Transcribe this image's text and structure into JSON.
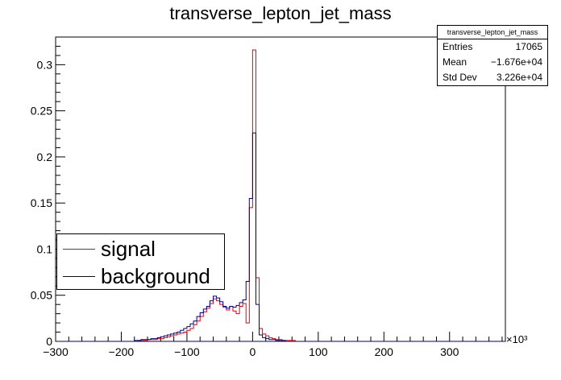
{
  "chart_data": {
    "type": "histogram",
    "title": "transverse_lepton_jet_mass",
    "xlabel": "",
    "ylabel": "",
    "x_multiplier": "×10³",
    "xlim": [
      -300,
      385
    ],
    "ylim": [
      0,
      0.33
    ],
    "x_ticks": [
      "−300",
      "−200",
      "−100",
      "0",
      "100",
      "200",
      "300"
    ],
    "y_ticks": [
      "0",
      "0.05",
      "0.1",
      "0.15",
      "0.2",
      "0.25",
      "0.3"
    ],
    "bin_width": 5,
    "stats": {
      "name": "transverse_lepton_jet_mass",
      "rows": [
        {
          "label": "Entries",
          "value": "17065"
        },
        {
          "label": "Mean",
          "value": "−1.676e+04"
        },
        {
          "label": "Std Dev",
          "value": "3.226e+04"
        }
      ]
    },
    "legend": [
      {
        "name": "signal",
        "color": "#e8000b"
      },
      {
        "name": "background",
        "color": "#00007f"
      }
    ],
    "series": [
      {
        "name": "signal",
        "color": "#e8000b",
        "bins": [
          {
            "x": -175,
            "y": 0.001
          },
          {
            "x": -170,
            "y": 0.001
          },
          {
            "x": -165,
            "y": 0.001
          },
          {
            "x": -160,
            "y": 0.002
          },
          {
            "x": -155,
            "y": 0.002
          },
          {
            "x": -150,
            "y": 0.002
          },
          {
            "x": -145,
            "y": 0.003
          },
          {
            "x": -140,
            "y": 0.003
          },
          {
            "x": -135,
            "y": 0.004
          },
          {
            "x": -130,
            "y": 0.005
          },
          {
            "x": -125,
            "y": 0.006
          },
          {
            "x": -120,
            "y": 0.007
          },
          {
            "x": -115,
            "y": 0.008
          },
          {
            "x": -110,
            "y": 0.009
          },
          {
            "x": -105,
            "y": 0.01
          },
          {
            "x": -100,
            "y": 0.012
          },
          {
            "x": -95,
            "y": 0.014
          },
          {
            "x": -90,
            "y": 0.018
          },
          {
            "x": -85,
            "y": 0.022
          },
          {
            "x": -80,
            "y": 0.027
          },
          {
            "x": -75,
            "y": 0.032
          },
          {
            "x": -70,
            "y": 0.036
          },
          {
            "x": -65,
            "y": 0.041
          },
          {
            "x": -60,
            "y": 0.046
          },
          {
            "x": -55,
            "y": 0.044
          },
          {
            "x": -50,
            "y": 0.04
          },
          {
            "x": -45,
            "y": 0.037
          },
          {
            "x": -40,
            "y": 0.034
          },
          {
            "x": -35,
            "y": 0.038
          },
          {
            "x": -30,
            "y": 0.033
          },
          {
            "x": -25,
            "y": 0.03
          },
          {
            "x": -20,
            "y": 0.038
          },
          {
            "x": -15,
            "y": 0.041
          },
          {
            "x": -10,
            "y": 0.02
          },
          {
            "x": -5,
            "y": 0.145
          },
          {
            "x": 0,
            "y": 0.316
          },
          {
            "x": 5,
            "y": 0.069
          },
          {
            "x": 10,
            "y": 0.014
          },
          {
            "x": 15,
            "y": 0.008
          },
          {
            "x": 20,
            "y": 0.006
          },
          {
            "x": 25,
            "y": 0.004
          },
          {
            "x": 30,
            "y": 0.003
          },
          {
            "x": 35,
            "y": 0.002
          },
          {
            "x": 40,
            "y": 0.002
          },
          {
            "x": 45,
            "y": 0.001
          },
          {
            "x": 50,
            "y": 0.001
          },
          {
            "x": 55,
            "y": 0.001
          },
          {
            "x": 60,
            "y": 0.001
          }
        ]
      },
      {
        "name": "background",
        "color": "#00007f",
        "bins": [
          {
            "x": -180,
            "y": 0.001
          },
          {
            "x": -175,
            "y": 0.001
          },
          {
            "x": -170,
            "y": 0.002
          },
          {
            "x": -165,
            "y": 0.002
          },
          {
            "x": -160,
            "y": 0.002
          },
          {
            "x": -155,
            "y": 0.003
          },
          {
            "x": -150,
            "y": 0.003
          },
          {
            "x": -145,
            "y": 0.004
          },
          {
            "x": -140,
            "y": 0.005
          },
          {
            "x": -135,
            "y": 0.006
          },
          {
            "x": -130,
            "y": 0.007
          },
          {
            "x": -125,
            "y": 0.008
          },
          {
            "x": -120,
            "y": 0.009
          },
          {
            "x": -115,
            "y": 0.01
          },
          {
            "x": -110,
            "y": 0.012
          },
          {
            "x": -105,
            "y": 0.014
          },
          {
            "x": -100,
            "y": 0.016
          },
          {
            "x": -95,
            "y": 0.019
          },
          {
            "x": -90,
            "y": 0.022
          },
          {
            "x": -85,
            "y": 0.027
          },
          {
            "x": -80,
            "y": 0.031
          },
          {
            "x": -75,
            "y": 0.035
          },
          {
            "x": -70,
            "y": 0.038
          },
          {
            "x": -65,
            "y": 0.044
          },
          {
            "x": -60,
            "y": 0.049
          },
          {
            "x": -55,
            "y": 0.047
          },
          {
            "x": -50,
            "y": 0.043
          },
          {
            "x": -45,
            "y": 0.038
          },
          {
            "x": -40,
            "y": 0.036
          },
          {
            "x": -35,
            "y": 0.038
          },
          {
            "x": -30,
            "y": 0.037
          },
          {
            "x": -25,
            "y": 0.039
          },
          {
            "x": -20,
            "y": 0.042
          },
          {
            "x": -15,
            "y": 0.045
          },
          {
            "x": -10,
            "y": 0.065
          },
          {
            "x": -5,
            "y": 0.155
          },
          {
            "x": 0,
            "y": 0.226
          },
          {
            "x": 5,
            "y": 0.04
          },
          {
            "x": 10,
            "y": 0.007
          },
          {
            "x": 15,
            "y": 0.004
          },
          {
            "x": 20,
            "y": 0.003
          },
          {
            "x": 25,
            "y": 0.002
          },
          {
            "x": 30,
            "y": 0.002
          },
          {
            "x": 35,
            "y": 0.001
          },
          {
            "x": 40,
            "y": 0.001
          },
          {
            "x": 45,
            "y": 0.001
          }
        ]
      }
    ]
  }
}
